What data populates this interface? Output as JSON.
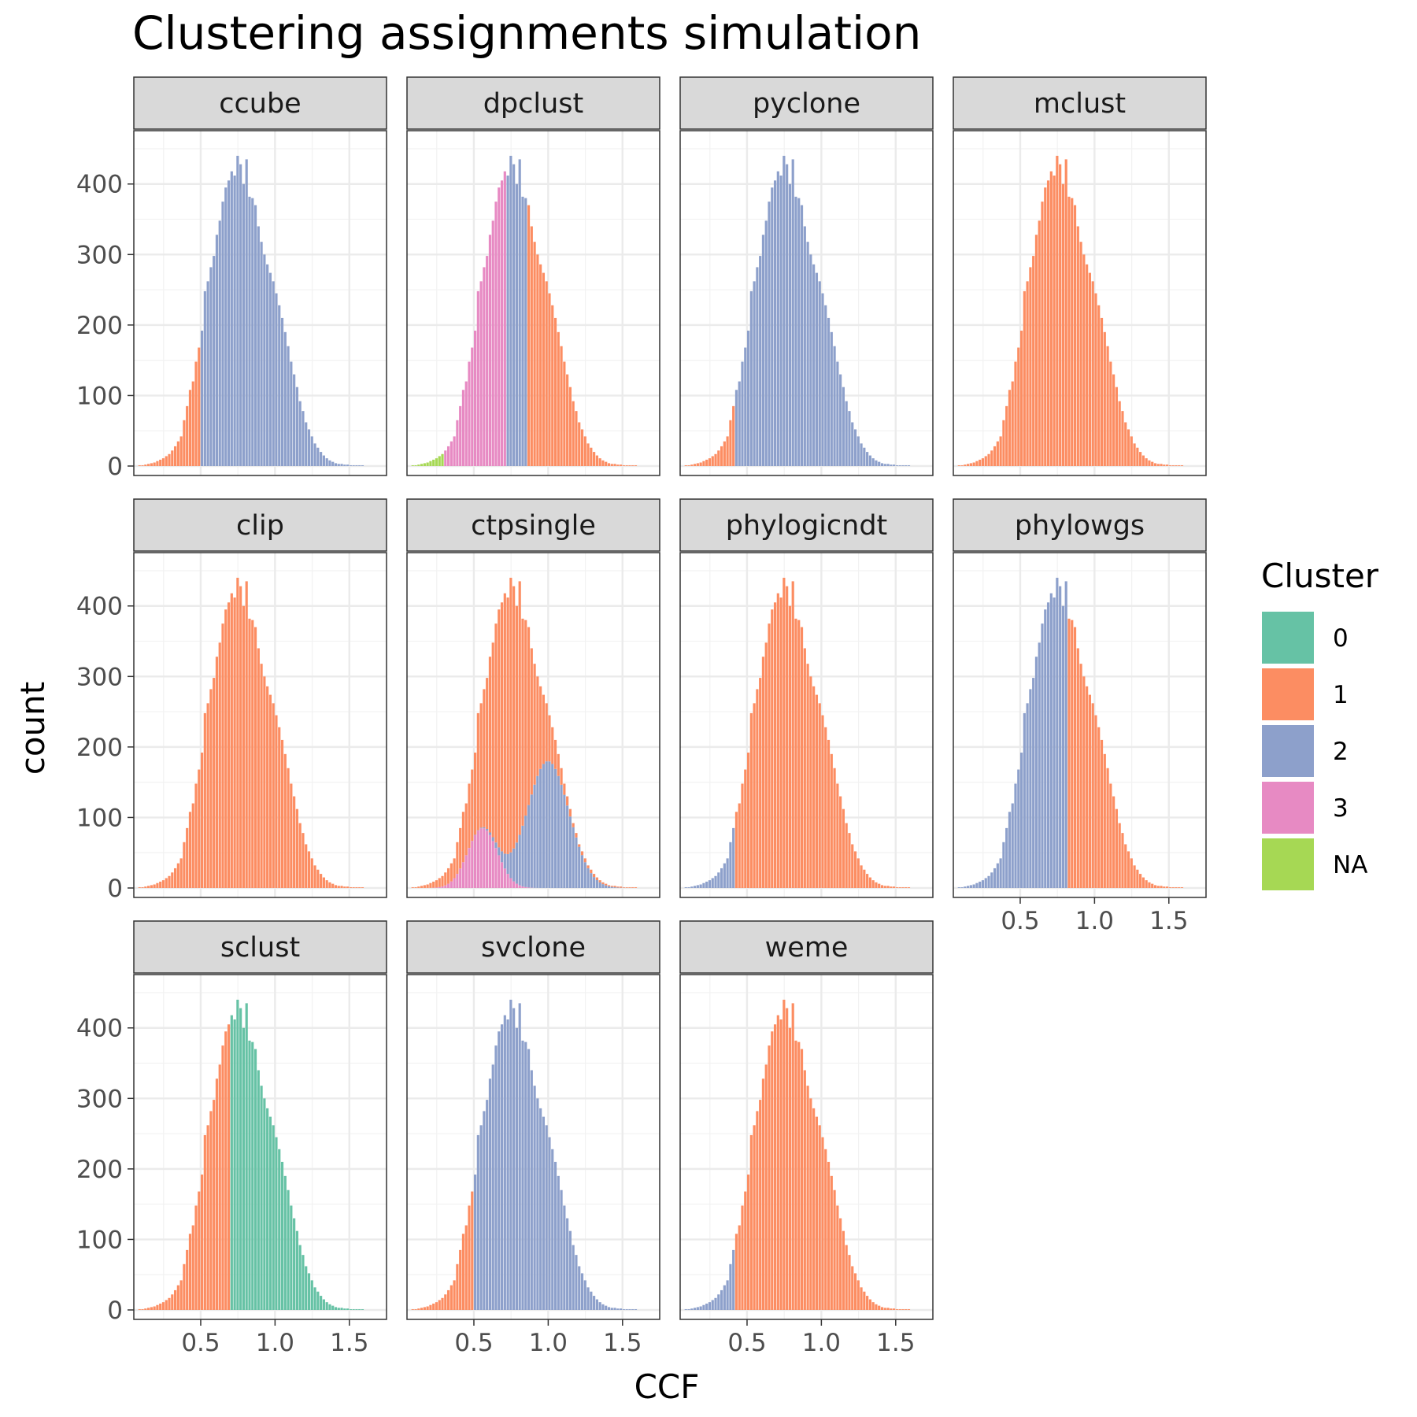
{
  "chart_data": {
    "type": "bar",
    "subtype": "faceted stacked histogram",
    "title": "Clustering assignments simulation",
    "xlabel": "CCF",
    "ylabel": "count",
    "xlim": [
      0.05,
      1.75
    ],
    "ylim": [
      0,
      460
    ],
    "x_ticks": [
      0.5,
      1.0,
      1.5
    ],
    "x_tick_labels": [
      "0.5",
      "1.0",
      "1.5"
    ],
    "y_ticks": [
      0,
      100,
      200,
      300,
      400
    ],
    "y_tick_labels": [
      "0",
      "100",
      "200",
      "300",
      "400"
    ],
    "grid": true,
    "legend": {
      "title": "Cluster",
      "position": "right",
      "entries": [
        {
          "label": "0",
          "color": "#66c2a5"
        },
        {
          "label": "1",
          "color": "#fc8d62"
        },
        {
          "label": "2",
          "color": "#8da0cb"
        },
        {
          "label": "3",
          "color": "#e78ac3"
        },
        {
          "label": "NA",
          "color": "#a6d854"
        }
      ]
    },
    "layout": {
      "ncol": 4,
      "nrow": 3
    },
    "bin_width": 0.02,
    "histogram": {
      "x": [
        0.09,
        0.11,
        0.13,
        0.15,
        0.17,
        0.19,
        0.21,
        0.23,
        0.25,
        0.27,
        0.29,
        0.31,
        0.33,
        0.35,
        0.37,
        0.39,
        0.41,
        0.43,
        0.45,
        0.47,
        0.49,
        0.51,
        0.53,
        0.55,
        0.57,
        0.59,
        0.61,
        0.63,
        0.65,
        0.67,
        0.69,
        0.71,
        0.73,
        0.75,
        0.77,
        0.79,
        0.81,
        0.83,
        0.85,
        0.87,
        0.89,
        0.91,
        0.93,
        0.95,
        0.97,
        0.99,
        1.01,
        1.03,
        1.05,
        1.07,
        1.09,
        1.11,
        1.13,
        1.15,
        1.17,
        1.19,
        1.21,
        1.23,
        1.25,
        1.27,
        1.29,
        1.31,
        1.33,
        1.35,
        1.37,
        1.39,
        1.41,
        1.43,
        1.45,
        1.47,
        1.49,
        1.51,
        1.53,
        1.55,
        1.57,
        1.59,
        1.61,
        1.63,
        1.65,
        1.67,
        1.69,
        1.71
      ],
      "counts": [
        1,
        1,
        2,
        3,
        4,
        5,
        7,
        9,
        11,
        14,
        17,
        22,
        28,
        35,
        42,
        65,
        85,
        108,
        120,
        148,
        168,
        192,
        248,
        262,
        282,
        298,
        328,
        348,
        375,
        395,
        405,
        418,
        412,
        440,
        428,
        400,
        435,
        382,
        380,
        370,
        340,
        318,
        300,
        286,
        274,
        262,
        245,
        228,
        210,
        190,
        170,
        148,
        130,
        112,
        92,
        78,
        62,
        52,
        42,
        32,
        26,
        20,
        15,
        11,
        8,
        6,
        4,
        3,
        3,
        2,
        2,
        1,
        1,
        1,
        1,
        1,
        0,
        0,
        0,
        0,
        0,
        0
      ]
    },
    "panels": [
      {
        "name": "ccube",
        "splits": [
          {
            "cluster": "1",
            "min": 0.0,
            "max": 0.5
          },
          {
            "cluster": "2",
            "min": 0.5,
            "max": 2.0
          }
        ]
      },
      {
        "name": "dpclust",
        "splits": [
          {
            "cluster": "NA",
            "min": 0.0,
            "max": 0.3
          },
          {
            "cluster": "3",
            "min": 0.3,
            "max": 0.72
          },
          {
            "cluster": "2",
            "min": 0.72,
            "max": 0.86
          },
          {
            "cluster": "1",
            "min": 0.86,
            "max": 2.0
          }
        ]
      },
      {
        "name": "pyclone",
        "splits": [
          {
            "cluster": "1",
            "min": 0.0,
            "max": 0.42
          },
          {
            "cluster": "2",
            "min": 0.42,
            "max": 2.0
          }
        ]
      },
      {
        "name": "mclust",
        "splits": [
          {
            "cluster": "1",
            "min": 0.0,
            "max": 2.0
          }
        ]
      },
      {
        "name": "clip",
        "splits": [
          {
            "cluster": "1",
            "min": 0.0,
            "max": 2.0
          }
        ]
      },
      {
        "name": "ctpsingle",
        "splits": [
          {
            "cluster": "1",
            "min": 0.0,
            "max": 2.0
          }
        ]
      },
      {
        "name": "phylogicndt",
        "splits": [
          {
            "cluster": "2",
            "min": 0.0,
            "max": 0.42
          },
          {
            "cluster": "1",
            "min": 0.42,
            "max": 2.0
          }
        ]
      },
      {
        "name": "phylowgs",
        "splits": [
          {
            "cluster": "2",
            "min": 0.0,
            "max": 0.82
          },
          {
            "cluster": "1",
            "min": 0.82,
            "max": 2.0
          }
        ]
      },
      {
        "name": "sclust",
        "splits": [
          {
            "cluster": "1",
            "min": 0.0,
            "max": 0.7
          },
          {
            "cluster": "0",
            "min": 0.7,
            "max": 2.0
          }
        ]
      },
      {
        "name": "svclone",
        "splits": [
          {
            "cluster": "1",
            "min": 0.0,
            "max": 0.5
          },
          {
            "cluster": "2",
            "min": 0.5,
            "max": 2.0
          }
        ]
      },
      {
        "name": "weme",
        "splits": [
          {
            "cluster": "2",
            "min": 0.0,
            "max": 0.42
          },
          {
            "cluster": "1",
            "min": 0.42,
            "max": 2.0
          }
        ]
      }
    ],
    "ctpsingle_overlay": {
      "cluster_3": {
        "center": 0.56,
        "peak": 85,
        "sd": 0.1
      },
      "cluster_2": {
        "center": 1.0,
        "peak": 180,
        "sd": 0.14
      }
    }
  }
}
